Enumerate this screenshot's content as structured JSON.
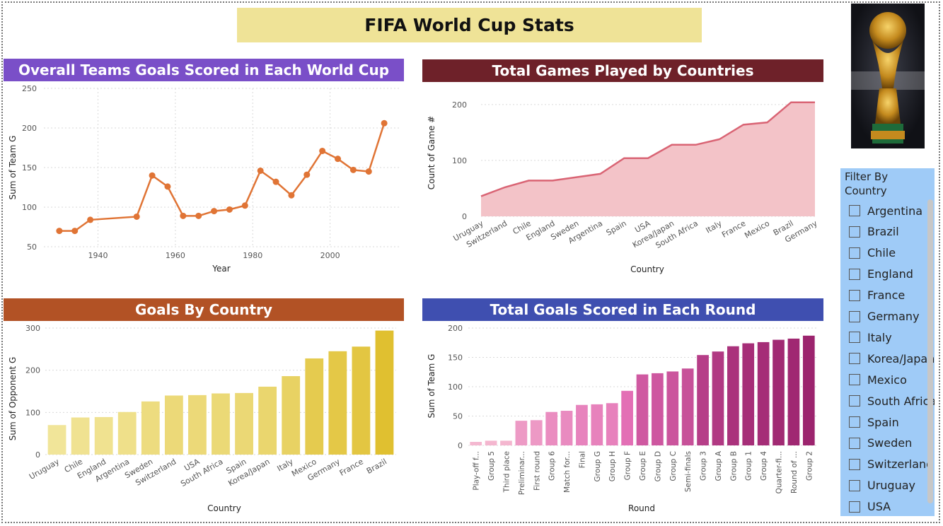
{
  "page": {
    "title": "FIFA World Cup Stats"
  },
  "colors": {
    "panel1": "#7a4fc8",
    "panel2": "#6e2129",
    "panel3": "#b25225",
    "panel4": "#3f4fb0",
    "line1": "#e07435",
    "area2": "#f3c3c8",
    "line2": "#d96474",
    "filter_bg": "#9fcbf7"
  },
  "image": {
    "icon": "world-cup-trophy-photo"
  },
  "filter": {
    "title": "Filter By Country",
    "items": [
      "Argentina",
      "Brazil",
      "Chile",
      "England",
      "France",
      "Germany",
      "Italy",
      "Korea/Japan",
      "Mexico",
      "South Africa",
      "Spain",
      "Sweden",
      "Switzerland",
      "Uruguay",
      "USA"
    ]
  },
  "chart_data": [
    {
      "type": "line",
      "title": "Overall Teams Goals Scored in Each World Cup",
      "xlabel": "Year",
      "ylabel": "Sum of Team G",
      "xlim": [
        1926,
        2018
      ],
      "ylim": [
        50,
        250
      ],
      "xticks": [
        1940,
        1960,
        1980,
        2000
      ],
      "yticks": [
        50,
        100,
        150,
        200,
        250
      ],
      "x": [
        1930,
        1934,
        1938,
        1950,
        1954,
        1958,
        1962,
        1966,
        1970,
        1974,
        1978,
        1982,
        1986,
        1990,
        1994,
        1998,
        2002,
        2006,
        2010,
        2014
      ],
      "values": [
        70,
        70,
        84,
        88,
        140,
        126,
        89,
        89,
        95,
        97,
        102,
        146,
        132,
        115,
        141,
        171,
        161,
        147,
        145,
        206
      ],
      "grid": true
    },
    {
      "type": "area",
      "title": "Total Games Played by Countries",
      "xlabel": "Country",
      "ylabel": "Count of Game #",
      "ylim": [
        0,
        215
      ],
      "yticks": [
        0,
        100,
        200
      ],
      "categories": [
        "Uruguay",
        "Switzerland",
        "Chile",
        "England",
        "Sweden",
        "Argentina",
        "Spain",
        "USA",
        "Korea/Japan",
        "South Africa",
        "Italy",
        "France",
        "Mexico",
        "Brazil",
        "Germany"
      ],
      "values": [
        36,
        52,
        64,
        64,
        70,
        76,
        104,
        104,
        128,
        128,
        138,
        164,
        168,
        204,
        204
      ],
      "grid": true
    },
    {
      "type": "bar",
      "title": "Goals By Country",
      "xlabel": "Country",
      "ylabel": "Sum of Opponent G",
      "ylim": [
        0,
        300
      ],
      "yticks": [
        0,
        100,
        200,
        300
      ],
      "categories": [
        "Uruguay",
        "Chile",
        "England",
        "Argentina",
        "Sweden",
        "Switzerland",
        "USA",
        "South Africa",
        "Spain",
        "Korea/Japan",
        "Italy",
        "Mexico",
        "Germany",
        "France",
        "Brazil"
      ],
      "values": [
        70,
        88,
        89,
        101,
        126,
        140,
        141,
        145,
        146,
        161,
        186,
        228,
        245,
        256,
        294
      ],
      "grid": true
    },
    {
      "type": "bar",
      "title": "Total Goals Scored in Each Round",
      "xlabel": "Round",
      "ylabel": "Sum of Team G",
      "ylim": [
        0,
        200
      ],
      "yticks": [
        0,
        50,
        100,
        150,
        200
      ],
      "categories": [
        "Play-off f...",
        "Group 5",
        "Third place",
        "Preliminar...",
        "First round",
        "Group 6",
        "Match for...",
        "Final",
        "Group G",
        "Group H",
        "Group F",
        "Group E",
        "Group D",
        "Group C",
        "Semi-finals",
        "Group 3",
        "Group A",
        "Group B",
        "Group 1",
        "Group 4",
        "Quarter-fi...",
        "Round of ...",
        "Group 2"
      ],
      "values": [
        6,
        8,
        8,
        42,
        43,
        57,
        59,
        69,
        70,
        72,
        93,
        121,
        123,
        126,
        131,
        154,
        160,
        169,
        174,
        176,
        180,
        182,
        187
      ],
      "grid": true
    }
  ]
}
